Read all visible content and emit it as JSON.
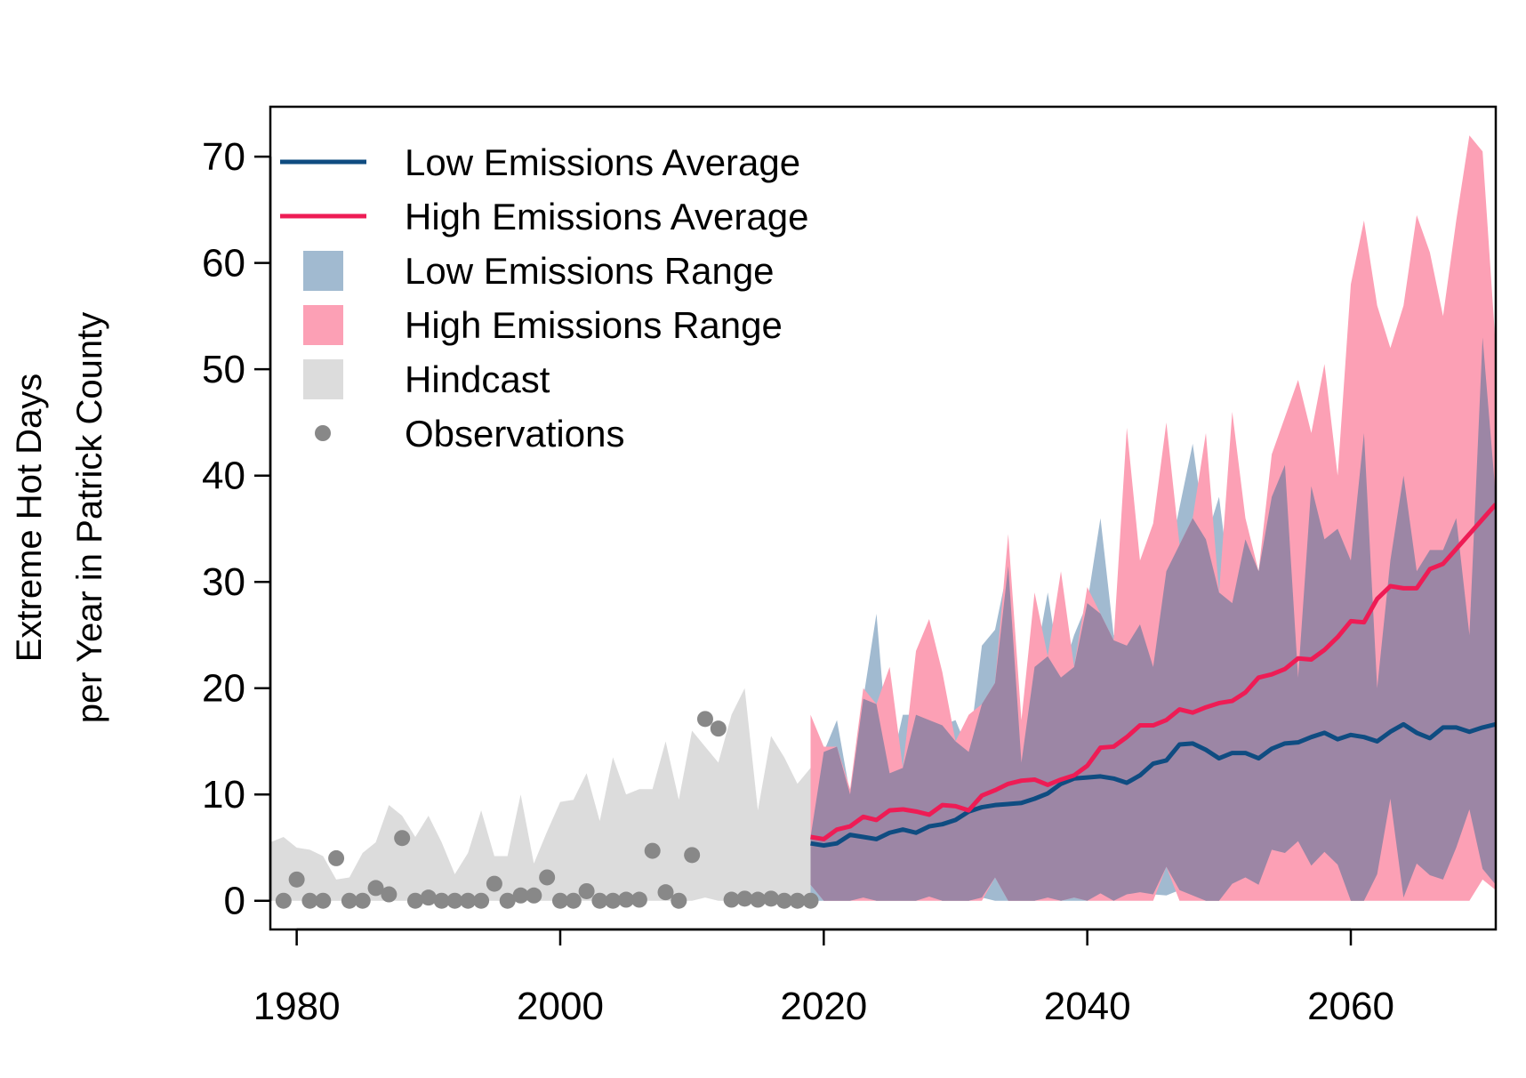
{
  "chart_data": {
    "type": "line",
    "ylabel": "Extreme Hot Days per Year in Patrick County",
    "ylabel_lines": [
      "Extreme Hot Days",
      "per Year in Patrick County"
    ],
    "xlabel": "",
    "xlim": [
      1978,
      2071
    ],
    "ylim": [
      -2.7,
      74.7
    ],
    "x_ticks": [
      1980,
      2000,
      2020,
      2040,
      2060
    ],
    "y_ticks": [
      0,
      10,
      20,
      30,
      40,
      50,
      60,
      70
    ],
    "legend_position": "top-left",
    "legend": [
      {
        "label": "Low Emissions Average",
        "kind": "line",
        "color": "#0f4c81"
      },
      {
        "label": "High Emissions Average",
        "kind": "line",
        "color": "#ee1c55"
      },
      {
        "label": "Low Emissions Range",
        "kind": "fill",
        "color": "#a1bad0"
      },
      {
        "label": "High Emissions Range",
        "kind": "fill",
        "color": "#fca0b5"
      },
      {
        "label": "Hindcast",
        "kind": "fill",
        "color": "#dcdcdc"
      },
      {
        "label": "Observations",
        "kind": "point",
        "color": "#888888"
      }
    ],
    "colors": {
      "low_avg": "#0f4c81",
      "high_avg": "#ee1c55",
      "low_range": "#a1bad0",
      "high_range": "#fca0b5",
      "overlap": "#9c86a5",
      "hindcast": "#dcdcdc",
      "observations": "#888888"
    },
    "hindcast": {
      "x": [
        1978,
        1979,
        1980,
        1981,
        1982,
        1983,
        1984,
        1985,
        1986,
        1987,
        1988,
        1989,
        1990,
        1991,
        1992,
        1993,
        1994,
        1995,
        1996,
        1997,
        1998,
        1999,
        2000,
        2001,
        2002,
        2003,
        2004,
        2005,
        2006,
        2007,
        2008,
        2009,
        2010,
        2011,
        2012,
        2013,
        2014,
        2015,
        2016,
        2017,
        2018,
        2019
      ],
      "upper": [
        5.5,
        6,
        5,
        4.8,
        4.2,
        2,
        2.2,
        4.5,
        5.5,
        9,
        8,
        6,
        8,
        5.5,
        2.5,
        4.5,
        8.5,
        4.2,
        4.2,
        10,
        3.5,
        6.5,
        9.3,
        9.5,
        12,
        7.5,
        13.5,
        10,
        10.5,
        10.5,
        15,
        9.5,
        16,
        14.5,
        13,
        17.5,
        20,
        8.5,
        15.5,
        13.5,
        11,
        12.5
      ],
      "lower": [
        0,
        0,
        0,
        0,
        0,
        0,
        0,
        0,
        0,
        0,
        0,
        0,
        0,
        0,
        0,
        0,
        0,
        0,
        0,
        0,
        0,
        0,
        0,
        0,
        0,
        0,
        0,
        0,
        0,
        0,
        0,
        0,
        0,
        0.3,
        0,
        0,
        0,
        0,
        0,
        0,
        0,
        0
      ]
    },
    "observations": {
      "x": [
        1979,
        1980,
        1981,
        1982,
        1983,
        1984,
        1985,
        1986,
        1987,
        1988,
        1989,
        1990,
        1991,
        1992,
        1993,
        1994,
        1995,
        1996,
        1997,
        1998,
        1999,
        2000,
        2001,
        2002,
        2003,
        2004,
        2005,
        2006,
        2007,
        2008,
        2009,
        2010,
        2011,
        2012,
        2013,
        2014,
        2015,
        2016,
        2017,
        2018,
        2019
      ],
      "y": [
        0,
        2,
        0,
        0,
        4,
        0,
        0,
        1.2,
        0.6,
        5.9,
        0,
        0.3,
        0,
        0,
        0,
        0,
        1.6,
        0,
        0.5,
        0.5,
        2.2,
        0,
        0,
        0.9,
        0,
        0,
        0.1,
        0.1,
        4.7,
        0.8,
        0,
        4.3,
        17.1,
        16.2,
        0.1,
        0.2,
        0.1,
        0.2,
        0,
        0,
        0
      ]
    },
    "low_emissions_range": {
      "x": [
        2019,
        2020,
        2021,
        2022,
        2023,
        2024,
        2025,
        2026,
        2027,
        2028,
        2029,
        2030,
        2031,
        2032,
        2033,
        2034,
        2035,
        2036,
        2037,
        2038,
        2039,
        2040,
        2041,
        2042,
        2043,
        2044,
        2045,
        2046,
        2047,
        2048,
        2049,
        2050,
        2051,
        2052,
        2053,
        2054,
        2055,
        2056,
        2057,
        2058,
        2059,
        2060,
        2061,
        2062,
        2063,
        2064,
        2065,
        2066,
        2067,
        2068,
        2069,
        2070,
        2071
      ],
      "upper": [
        6,
        14,
        17,
        10,
        19,
        27,
        12,
        17.5,
        17.5,
        17,
        16.5,
        17,
        14,
        24,
        25.5,
        31.5,
        13,
        22,
        29,
        21,
        25,
        28,
        36,
        25,
        24,
        26,
        22,
        31,
        37,
        43,
        34,
        38,
        28,
        34,
        31,
        38,
        41,
        21,
        39,
        34,
        35,
        32,
        44,
        20,
        32,
        40,
        31,
        33,
        33,
        36,
        25,
        53,
        38
      ],
      "lower": [
        0,
        0,
        0,
        0,
        0.3,
        0,
        0,
        0,
        0,
        0.4,
        0,
        0,
        0,
        0.3,
        0,
        0,
        0,
        0,
        0.3,
        0,
        0,
        0,
        0.7,
        0,
        0.6,
        0.8,
        0.6,
        0.5,
        1,
        0.5,
        0,
        0,
        1.6,
        2.2,
        1.5,
        4.8,
        4.5,
        5.6,
        3.3,
        4.6,
        3.4,
        0,
        0,
        2.5,
        9.6,
        0.3,
        3.5,
        2.4,
        2,
        5,
        8.6,
        3,
        1.5
      ]
    },
    "high_emissions_range": {
      "x": [
        2019,
        2020,
        2021,
        2022,
        2023,
        2024,
        2025,
        2026,
        2027,
        2028,
        2029,
        2030,
        2031,
        2032,
        2033,
        2034,
        2035,
        2036,
        2037,
        2038,
        2039,
        2040,
        2041,
        2042,
        2043,
        2044,
        2045,
        2046,
        2047,
        2048,
        2049,
        2050,
        2051,
        2052,
        2053,
        2054,
        2055,
        2056,
        2057,
        2058,
        2059,
        2060,
        2061,
        2062,
        2063,
        2064,
        2065,
        2066,
        2067,
        2068,
        2069,
        2070,
        2071
      ],
      "upper": [
        17.5,
        14.5,
        14.5,
        10.5,
        20,
        18.5,
        22,
        12.5,
        23.5,
        26.5,
        21.5,
        15,
        17.5,
        18.5,
        20.5,
        34.5,
        17,
        29,
        23,
        31,
        22,
        29.5,
        27,
        24.5,
        44.5,
        32,
        35.5,
        45,
        33.5,
        36,
        44,
        29,
        46,
        36,
        31,
        42,
        45.5,
        49,
        44,
        50.5,
        40,
        58,
        64,
        56,
        52,
        56,
        64.5,
        61,
        55,
        64,
        72,
        70.5,
        52
      ],
      "lower": [
        1.5,
        0,
        0,
        0,
        0,
        0,
        0,
        0,
        0,
        0,
        0,
        0,
        0,
        0,
        2.2,
        0,
        0,
        0,
        0,
        0,
        0.3,
        0,
        0,
        0,
        0,
        0,
        0,
        3.2,
        0,
        0,
        0,
        0,
        0,
        0,
        0,
        0,
        0,
        0,
        0,
        0,
        0,
        0,
        0,
        0,
        0,
        0,
        0,
        0,
        0,
        0,
        0,
        2,
        1
      ]
    },
    "series": [
      {
        "name": "Low Emissions Average",
        "x": [
          2019,
          2020,
          2021,
          2022,
          2023,
          2024,
          2025,
          2026,
          2027,
          2028,
          2029,
          2030,
          2031,
          2032,
          2033,
          2034,
          2035,
          2036,
          2037,
          2038,
          2039,
          2040,
          2041,
          2042,
          2043,
          2044,
          2045,
          2046,
          2047,
          2048,
          2049,
          2050,
          2051,
          2052,
          2053,
          2054,
          2055,
          2056,
          2057,
          2058,
          2059,
          2060,
          2061,
          2062,
          2063,
          2064,
          2065,
          2066,
          2067,
          2068,
          2069,
          2070,
          2071
        ],
        "values": [
          5.4,
          5.2,
          5.4,
          6.2,
          6,
          5.8,
          6.4,
          6.7,
          6.4,
          7,
          7.2,
          7.6,
          8.4,
          8.8,
          9,
          9.1,
          9.2,
          9.6,
          10.1,
          11,
          11.5,
          11.6,
          11.7,
          11.5,
          11.1,
          11.8,
          12.9,
          13.2,
          14.7,
          14.8,
          14.2,
          13.4,
          13.9,
          13.9,
          13.4,
          14.3,
          14.8,
          14.9,
          15.4,
          15.8,
          15.2,
          15.6,
          15.4,
          15,
          15.9,
          16.6,
          15.8,
          15.3,
          16.3,
          16.3,
          15.9,
          16.3,
          16.6
        ]
      },
      {
        "name": "High Emissions Average",
        "x": [
          2019,
          2020,
          2021,
          2022,
          2023,
          2024,
          2025,
          2026,
          2027,
          2028,
          2029,
          2030,
          2031,
          2032,
          2033,
          2034,
          2035,
          2036,
          2037,
          2038,
          2039,
          2040,
          2041,
          2042,
          2043,
          2044,
          2045,
          2046,
          2047,
          2048,
          2049,
          2050,
          2051,
          2052,
          2053,
          2054,
          2055,
          2056,
          2057,
          2058,
          2059,
          2060,
          2061,
          2062,
          2063,
          2064,
          2065,
          2066,
          2067,
          2068,
          2069,
          2070,
          2071
        ],
        "values": [
          6,
          5.8,
          6.7,
          7,
          7.9,
          7.6,
          8.5,
          8.6,
          8.4,
          8.1,
          9,
          8.9,
          8.5,
          9.9,
          10.4,
          11,
          11.3,
          11.4,
          10.9,
          11.4,
          11.8,
          12.7,
          14.4,
          14.5,
          15.4,
          16.5,
          16.5,
          17,
          18,
          17.7,
          18.2,
          18.6,
          18.8,
          19.6,
          21,
          21.3,
          21.8,
          22.8,
          22.7,
          23.6,
          24.8,
          26.3,
          26.2,
          28.4,
          29.6,
          29.4,
          29.4,
          31.2,
          31.7,
          33.1,
          34.5,
          35.9,
          37.3
        ]
      }
    ]
  }
}
